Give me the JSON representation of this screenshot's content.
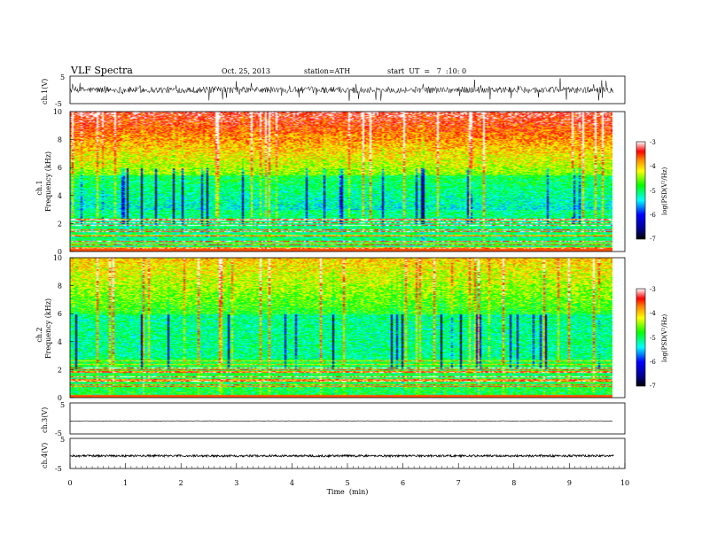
{
  "header": {
    "title": "VLF  Spectra",
    "date": "Oct. 25, 2013",
    "station": "station=ATH",
    "start": "start  UT  =   7  :10: 0"
  },
  "chart_data": [
    {
      "type": "line",
      "panel": "ch1-waveform",
      "ylabel": "ch.1(V)",
      "ylim": [
        -5,
        5
      ],
      "y_ticks": [
        "5",
        "-5"
      ],
      "x_range_min": [
        0,
        9.8
      ],
      "baseline": 0,
      "noise_amplitude": 1.2,
      "color": "#000000"
    },
    {
      "type": "heatmap",
      "panel": "ch1-spectrogram",
      "ylabel": "ch.1\nFrequency (kHz)",
      "ylabel_lines": [
        "ch.1",
        "Frequency (kHz)"
      ],
      "ylim": [
        0,
        10
      ],
      "y_ticks": [
        "0",
        "2",
        "4",
        "6",
        "8",
        "10"
      ],
      "x_range_min": [
        0,
        9.8
      ],
      "colorbar": {
        "label": "log(PSD(V²/Hz)",
        "range": [
          -7,
          -3
        ],
        "ticks": [
          "-3",
          "-4",
          "-5",
          "-6",
          "-7"
        ]
      }
    },
    {
      "type": "heatmap",
      "panel": "ch2-spectrogram",
      "ylabel": "ch.2\nFrequency (kHz)",
      "ylabel_lines": [
        "ch.2",
        "Frequency (kHz)"
      ],
      "ylim": [
        0,
        10
      ],
      "y_ticks": [
        "0",
        "2",
        "4",
        "6",
        "8",
        "10"
      ],
      "x_range_min": [
        0,
        9.8
      ],
      "colorbar": {
        "label": "log(PSD(V²/Hz)",
        "range": [
          -7,
          -3
        ],
        "ticks": [
          "-3",
          "-4",
          "-5",
          "-6",
          "-7"
        ]
      }
    },
    {
      "type": "line",
      "panel": "ch3-waveform",
      "ylabel": "ch.3(V)",
      "ylim": [
        -5,
        5
      ],
      "y_ticks": [
        "5",
        "-5"
      ],
      "x_range_min": [
        0,
        9.8
      ],
      "baseline": -0.8,
      "noise_amplitude": 0.05,
      "color": "#000000"
    },
    {
      "type": "line",
      "panel": "ch4-waveform",
      "ylabel": "ch.4(V)",
      "ylim": [
        -5,
        5
      ],
      "y_ticks": [
        "5",
        "-5"
      ],
      "x_range_min": [
        0,
        9.8
      ],
      "baseline": -0.8,
      "noise_amplitude": 0.35,
      "color": "#000000"
    }
  ],
  "xaxis": {
    "label": "Time  (min)",
    "range": [
      0,
      10
    ],
    "ticks": [
      "0",
      "1",
      "2",
      "3",
      "4",
      "5",
      "6",
      "7",
      "8",
      "9",
      "10"
    ]
  }
}
